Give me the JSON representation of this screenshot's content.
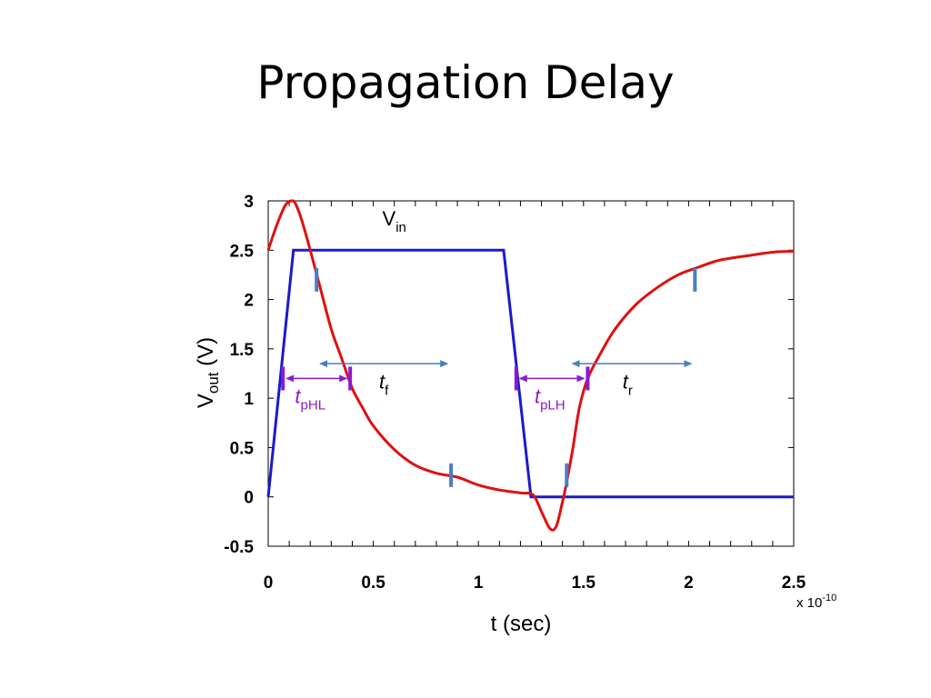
{
  "slide": {
    "title": "Propagation  Delay"
  },
  "chart_data": {
    "type": "line",
    "xlabel": "t (sec)",
    "x_exponent": {
      "prefix": "x 10",
      "power": "-10"
    },
    "ylabel": {
      "main": "V",
      "sub": "out",
      "rest": " (V)"
    },
    "xlim": [
      0,
      2.5
    ],
    "ylim": [
      -0.5,
      3
    ],
    "x_ticks": [
      0,
      0.5,
      1,
      1.5,
      2,
      2.5
    ],
    "x_tick_labels": [
      "0",
      "0.5",
      "1",
      "1.5",
      "2",
      "2.5"
    ],
    "y_ticks": [
      -0.5,
      0,
      0.5,
      1,
      1.5,
      2,
      2.5,
      3
    ],
    "y_tick_labels": [
      "-0.5",
      "0",
      "0.5",
      "1",
      "1.5",
      "2",
      "2.5",
      "3"
    ],
    "x_minor_tick_step": 0.1,
    "grid": false,
    "series": [
      {
        "name": "Vin",
        "color": "#1a1acc",
        "points": [
          [
            0,
            0
          ],
          [
            0.12,
            2.5
          ],
          [
            1.12,
            2.5
          ],
          [
            1.25,
            0
          ],
          [
            2.5,
            0
          ]
        ]
      },
      {
        "name": "",
        "color": "#e01010",
        "points": [
          [
            0,
            2.5
          ],
          [
            0.04,
            2.75
          ],
          [
            0.08,
            2.95
          ],
          [
            0.11,
            3.0
          ],
          [
            0.13,
            2.97
          ],
          [
            0.16,
            2.8
          ],
          [
            0.2,
            2.5
          ],
          [
            0.25,
            2.1
          ],
          [
            0.3,
            1.7
          ],
          [
            0.35,
            1.4
          ],
          [
            0.4,
            1.1
          ],
          [
            0.45,
            0.9
          ],
          [
            0.5,
            0.72
          ],
          [
            0.6,
            0.48
          ],
          [
            0.7,
            0.32
          ],
          [
            0.8,
            0.24
          ],
          [
            0.9,
            0.2
          ],
          [
            1.0,
            0.12
          ],
          [
            1.1,
            0.07
          ],
          [
            1.2,
            0.04
          ],
          [
            1.26,
            0.02
          ],
          [
            1.3,
            -0.15
          ],
          [
            1.34,
            -0.32
          ],
          [
            1.37,
            -0.3
          ],
          [
            1.4,
            -0.05
          ],
          [
            1.42,
            0.15
          ],
          [
            1.45,
            0.5
          ],
          [
            1.48,
            0.9
          ],
          [
            1.52,
            1.2
          ],
          [
            1.58,
            1.45
          ],
          [
            1.65,
            1.7
          ],
          [
            1.75,
            1.95
          ],
          [
            1.85,
            2.12
          ],
          [
            1.95,
            2.25
          ],
          [
            2.05,
            2.33
          ],
          [
            2.15,
            2.4
          ],
          [
            2.3,
            2.45
          ],
          [
            2.4,
            2.48
          ],
          [
            2.5,
            2.49
          ]
        ]
      }
    ],
    "annotations": {
      "vin_label": {
        "main": "V",
        "sub": "in",
        "x": 0.6,
        "y": 2.75
      },
      "tpHL": {
        "main": "t",
        "sub": "pHL",
        "color": "#8a1ad0",
        "x1": 0.07,
        "x2": 0.39,
        "y": 1.2,
        "label_x": 0.2,
        "label_y": 0.95
      },
      "tpLH": {
        "main": "t",
        "sub": "pLH",
        "color": "#8a1ad0",
        "x1": 1.18,
        "x2": 1.52,
        "y": 1.2,
        "label_x": 1.34,
        "label_y": 0.95
      },
      "tf": {
        "main": "t",
        "sub": "f",
        "color": "#4a7ec0",
        "x1": 0.23,
        "x2": 0.87,
        "y": 1.35,
        "label_x": 0.55,
        "label_y": 1.1
      },
      "tr": {
        "main": "t",
        "sub": "r",
        "color": "#4a7ec0",
        "x1": 1.43,
        "x2": 2.03,
        "y": 1.35,
        "label_x": 1.71,
        "label_y": 1.1
      },
      "markers_blue": [
        [
          0.23,
          2.2
        ],
        [
          0.87,
          0.22
        ],
        [
          1.42,
          0.22
        ],
        [
          2.03,
          2.2
        ]
      ],
      "markers_purple": [
        [
          0.07,
          1.2
        ],
        [
          0.39,
          1.2
        ],
        [
          1.18,
          1.2
        ],
        [
          1.52,
          1.2
        ]
      ]
    }
  }
}
